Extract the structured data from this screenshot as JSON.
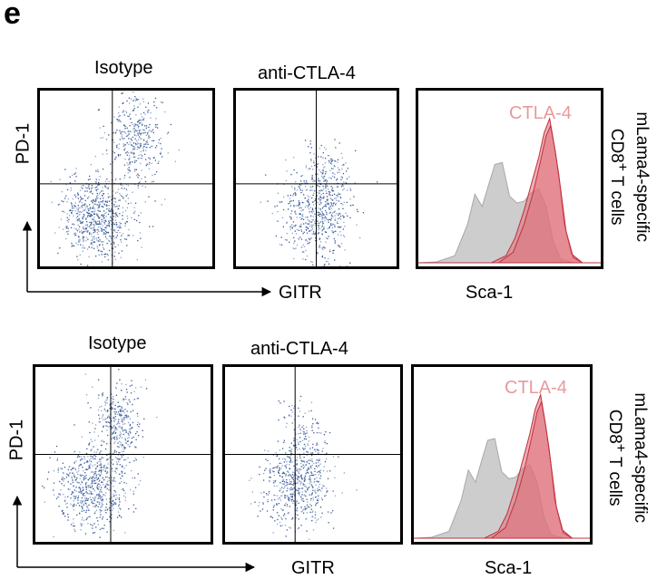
{
  "panel_letter": "e",
  "rows": [
    {
      "col_labels": {
        "isotype": "Isotype",
        "treatment": "anti-CTLA-4"
      },
      "y_axis": "PD-1",
      "x_axis": "GITR",
      "hist_axis": "Sca-1",
      "hist_legend": "CTLA-4",
      "side_label": {
        "line1": "mLama4-specific",
        "line2": "CD8",
        "line2_sup": "+",
        "line2_tail": " T cells"
      }
    },
    {
      "col_labels": {
        "isotype": "Isotype",
        "treatment": "anti-CTLA-4"
      },
      "y_axis": "PD-1",
      "x_axis": "GITR",
      "hist_axis": "Sca-1",
      "hist_legend": "CTLA-4",
      "side_label": {
        "line1": "mLama4-specific",
        "line2": "CD8",
        "line2_sup": "+",
        "line2_tail": " T cells"
      }
    }
  ],
  "colors": {
    "dots": "#3a5a96",
    "dots_light": "#8aa0c8",
    "histogram_isotype": "#c8c8c8",
    "histogram_ctla4": "#e0707a",
    "histogram_ctla4_line": "#c0303e",
    "hist_label": "#e89a9a"
  }
}
